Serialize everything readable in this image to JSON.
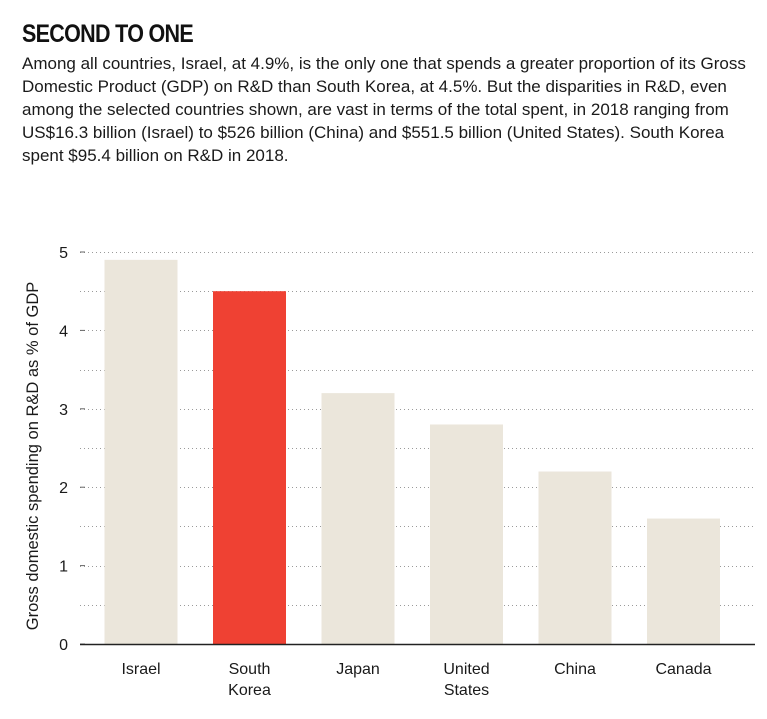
{
  "title": "SECOND TO ONE",
  "description": "Among all countries, Israel, at 4.9%, is the only one that spends a greater proportion of its Gross Domestic Product (GDP) on R&D than South Korea, at 4.5%.  But the disparities in R&D, even among the selected countries shown, are vast in terms of the total spent, in 2018 ranging from US$16.3 billion (Israel) to $526 billion (China) and $551.5 billion (United States). South Korea spent $95.4 billion on R&D in 2018.",
  "colors": {
    "bar": "#ebe6db",
    "highlight": "#ef4133",
    "grid": "#9a9a9a",
    "axis": "#222222"
  },
  "chart_data": {
    "type": "bar",
    "title": "SECOND TO ONE",
    "xlabel": "",
    "ylabel": "Gross domestic spending on R&D as % of GDP",
    "categories": [
      "Israel",
      "South Korea",
      "Japan",
      "United States",
      "China",
      "Canada"
    ],
    "category_lines": [
      [
        "Israel"
      ],
      [
        "South",
        "Korea"
      ],
      [
        "Japan"
      ],
      [
        "United",
        "States"
      ],
      [
        "China"
      ],
      [
        "Canada"
      ]
    ],
    "values": [
      4.9,
      4.5,
      3.2,
      2.8,
      2.2,
      1.6
    ],
    "highlight": "South Korea",
    "ylim": [
      0,
      5
    ],
    "yticks": [
      0,
      1,
      2,
      3,
      4,
      5
    ],
    "grid": true,
    "grid_style": "dotted"
  }
}
